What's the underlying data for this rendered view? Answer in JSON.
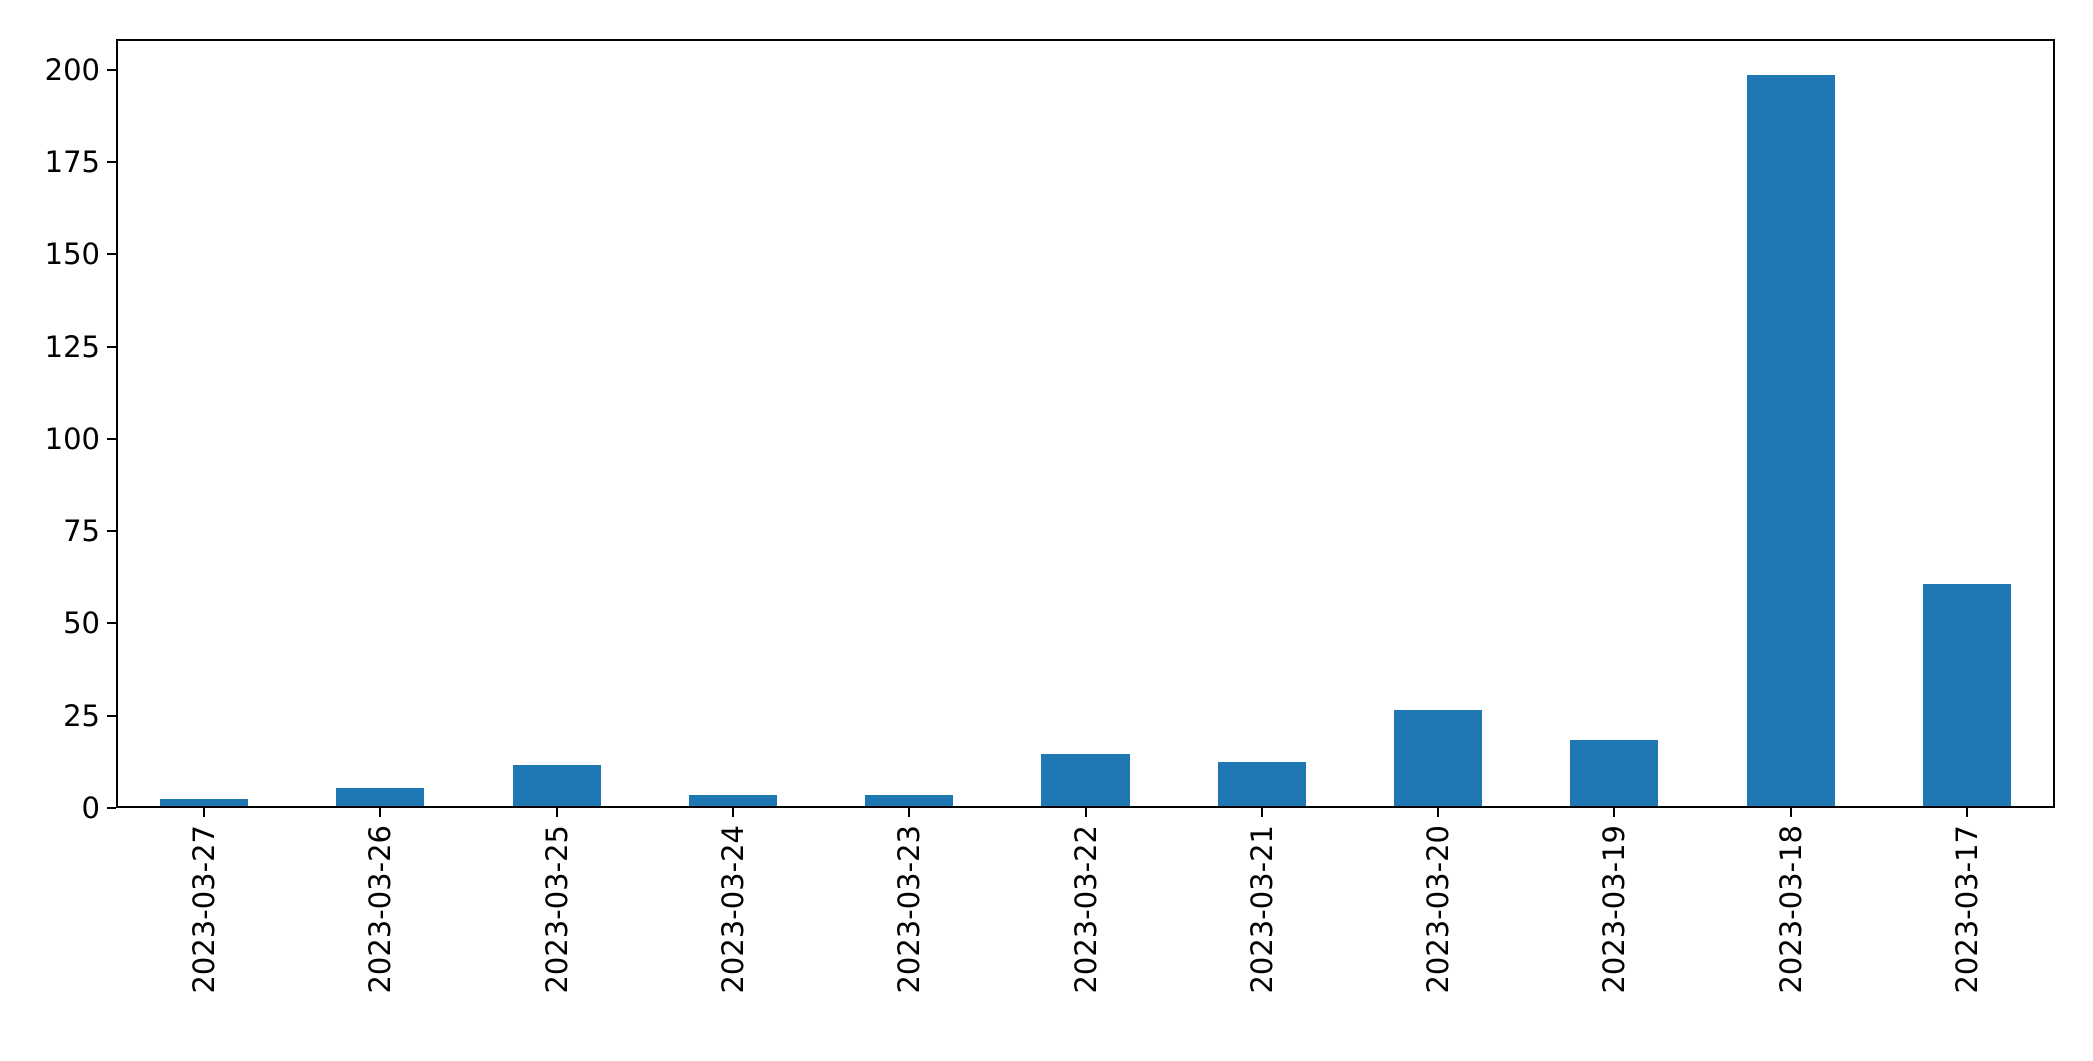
{
  "chart_data": {
    "type": "bar",
    "title": "",
    "xlabel": "",
    "ylabel": "",
    "categories": [
      "2023-03-27",
      "2023-03-26",
      "2023-03-25",
      "2023-03-24",
      "2023-03-23",
      "2023-03-22",
      "2023-03-21",
      "2023-03-20",
      "2023-03-19",
      "2023-03-18",
      "2023-03-17"
    ],
    "values": [
      2,
      5,
      11,
      3,
      3,
      14,
      12,
      26,
      18,
      198,
      60
    ],
    "yticks": [
      0,
      25,
      50,
      75,
      100,
      125,
      150,
      175,
      200
    ],
    "ylim": [
      0,
      208.3
    ],
    "bar_width_ratio": 0.5,
    "x_tick_rotation": 90,
    "grid": false,
    "legend_position": "none"
  },
  "colors": {
    "background": "#ffffff",
    "bar": "#1f77b4",
    "axis": "#000000",
    "text": "#000000"
  }
}
